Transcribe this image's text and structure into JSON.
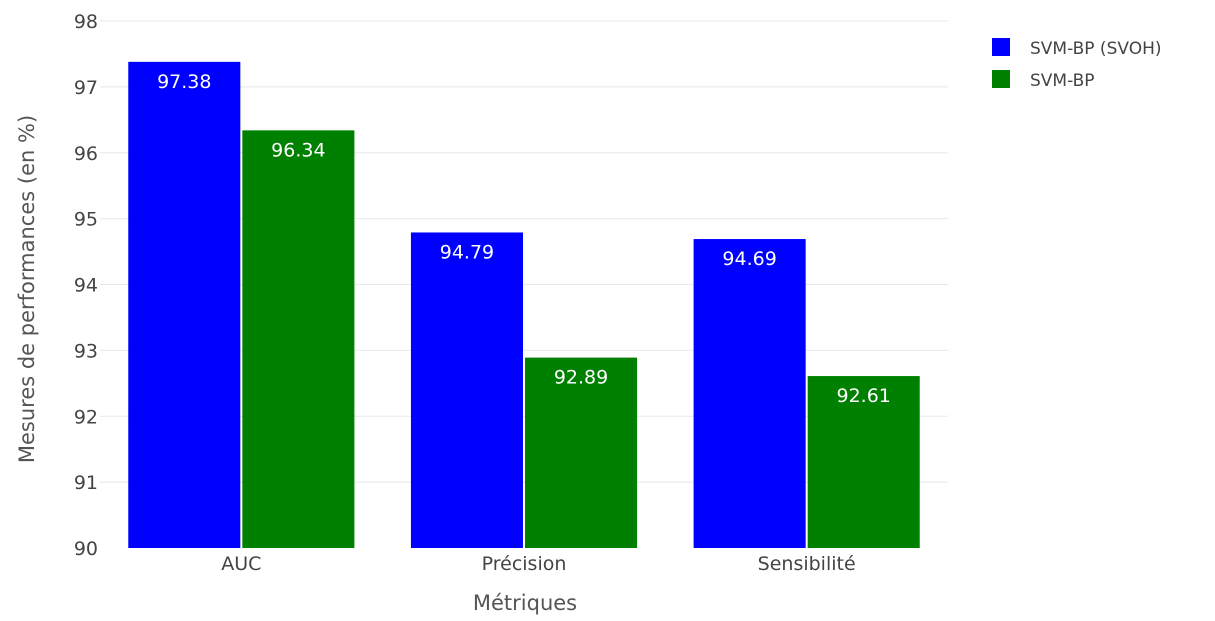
{
  "chart_data": {
    "type": "bar",
    "categories": [
      "AUC",
      "Précision",
      "Sensibilité"
    ],
    "series": [
      {
        "name": "SVM-BP (SVOH)",
        "color": "#0000ff",
        "values": [
          97.38,
          94.79,
          94.69
        ],
        "labels": [
          "97.38",
          "94.79",
          "94.69"
        ]
      },
      {
        "name": "SVM-BP",
        "color": "#008000",
        "values": [
          96.34,
          92.89,
          92.61
        ],
        "labels": [
          "96.34",
          "92.89",
          "92.61"
        ]
      }
    ],
    "title": "",
    "xlabel": "Métriques",
    "ylabel": "Mesures de performances (en %)",
    "ylim": [
      90,
      98
    ],
    "yticks": [
      "90",
      "91",
      "92",
      "93",
      "94",
      "95",
      "96",
      "97",
      "98"
    ],
    "grid": true,
    "legend_position": "top-right"
  }
}
